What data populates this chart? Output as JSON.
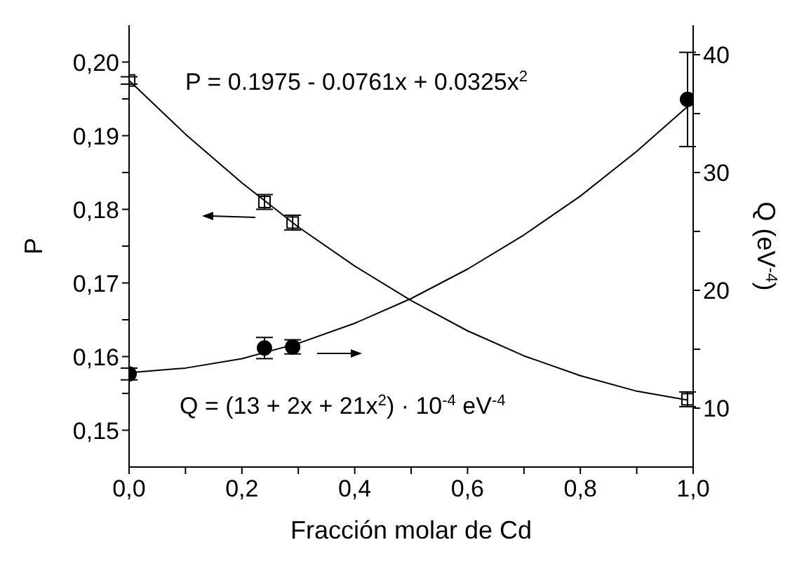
{
  "chart_data": {
    "type": "scatter",
    "xlabel": "Fracción molar de Cd",
    "ylabel": "P",
    "y2label": "Q (eV$^{-4}$)",
    "annotations": [
      "P = 0.1975 - 0.0761x + 0.0325x$^{2}$",
      "Q = (13 + 2x + 21x$^{2}$) · 10$^{-4}$ eV$^{-4}$"
    ],
    "series": [
      {
        "marker": "square",
        "color": "#000000",
        "x": [
          0,
          0.24,
          0.29,
          0.99
        ],
        "values": [
          0.1975,
          0.181,
          0.1782,
          0.1542
        ],
        "errors": [
          0.0005,
          0.001,
          0.001,
          0.001
        ]
      },
      {
        "marker": "circle",
        "axis": "y2",
        "color": "#000000",
        "x": [
          0,
          0.24,
          0.29,
          0.99
        ],
        "values": [
          12.9,
          15.1,
          15.2,
          36.2
        ],
        "errors": [
          0.5,
          0.9,
          0.6,
          4
        ]
      },
      {
        "type": "line",
        "marker": "none",
        "color": "#000000",
        "x": [
          0,
          0.1,
          0.2,
          0.3,
          0.4,
          0.5,
          0.6,
          0.7,
          0.8,
          0.9,
          0.99
        ],
        "values": [
          0.1975,
          0.1902,
          0.1836,
          0.1776,
          0.1723,
          0.1676,
          0.1635,
          0.1601,
          0.1574,
          0.1553,
          0.1541
        ]
      },
      {
        "type": "line",
        "marker": "none",
        "axis": "y2",
        "color": "#000000",
        "x": [
          0,
          0.1,
          0.2,
          0.3,
          0.4,
          0.5,
          0.6,
          0.7,
          0.8,
          0.9,
          0.99
        ],
        "values": [
          13,
          13.4,
          14.2,
          15.5,
          17.2,
          19.3,
          21.8,
          24.7,
          28,
          31.8,
          35.6
        ]
      }
    ],
    "xlim": [
      0,
      1
    ],
    "xticks": [
      {
        "value": 0,
        "label": "0,0"
      },
      {
        "value": 0.1,
        "label": null
      },
      {
        "value": 0.2,
        "label": "0,2"
      },
      {
        "value": 0.3,
        "label": null
      },
      {
        "value": 0.4,
        "label": "0,4"
      },
      {
        "value": 0.5,
        "label": null
      },
      {
        "value": 0.6,
        "label": "0,6"
      },
      {
        "value": 0.7,
        "label": null
      },
      {
        "value": 0.8,
        "label": "0,8"
      },
      {
        "value": 0.9,
        "label": null
      },
      {
        "value": 1,
        "label": "1,0"
      }
    ],
    "ylim": [
      0.145,
      0.205
    ],
    "yticks": [
      {
        "value": 0.15,
        "label": "0,15"
      },
      {
        "value": 0.155,
        "label": null
      },
      {
        "value": 0.16,
        "label": "0,16"
      },
      {
        "value": 0.165,
        "label": null
      },
      {
        "value": 0.17,
        "label": "0,17"
      },
      {
        "value": 0.175,
        "label": null
      },
      {
        "value": 0.18,
        "label": "0,18"
      },
      {
        "value": 0.185,
        "label": null
      },
      {
        "value": 0.19,
        "label": "0,19"
      },
      {
        "value": 0.195,
        "label": null
      },
      {
        "value": 0.2,
        "label": "0,20"
      }
    ],
    "y2lim": [
      5,
      42.5
    ],
    "y2ticks": [
      10,
      {
        "value": 15,
        "label": null
      },
      20,
      {
        "value": 25,
        "label": null
      },
      30,
      {
        "value": 35,
        "label": null
      },
      40
    ]
  }
}
